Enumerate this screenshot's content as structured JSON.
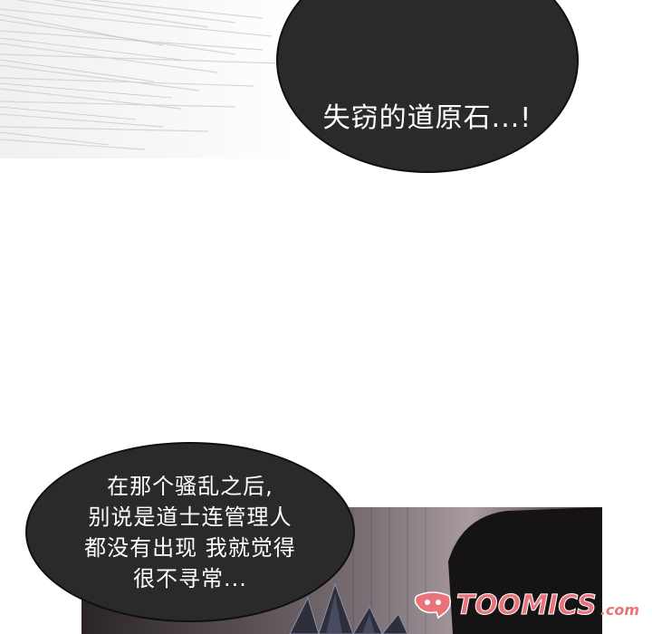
{
  "bubbles": {
    "top": {
      "text": "失窃的道原石...!"
    },
    "bottom": {
      "lines": [
        "在那个骚乱之后,",
        "别说是道士连管理人",
        "都没有出现 我就觉得",
        "很不寻常..."
      ]
    }
  },
  "watermark": {
    "logo_icon": "toomics-logo-icon",
    "brand": "TOOMICS",
    "suffix": ".com",
    "color": "#e8737b"
  },
  "colors": {
    "bubble_fill": "#2a2a2a",
    "bubble_text": "#ffffff",
    "panel_dark": "#1d1b1e"
  }
}
